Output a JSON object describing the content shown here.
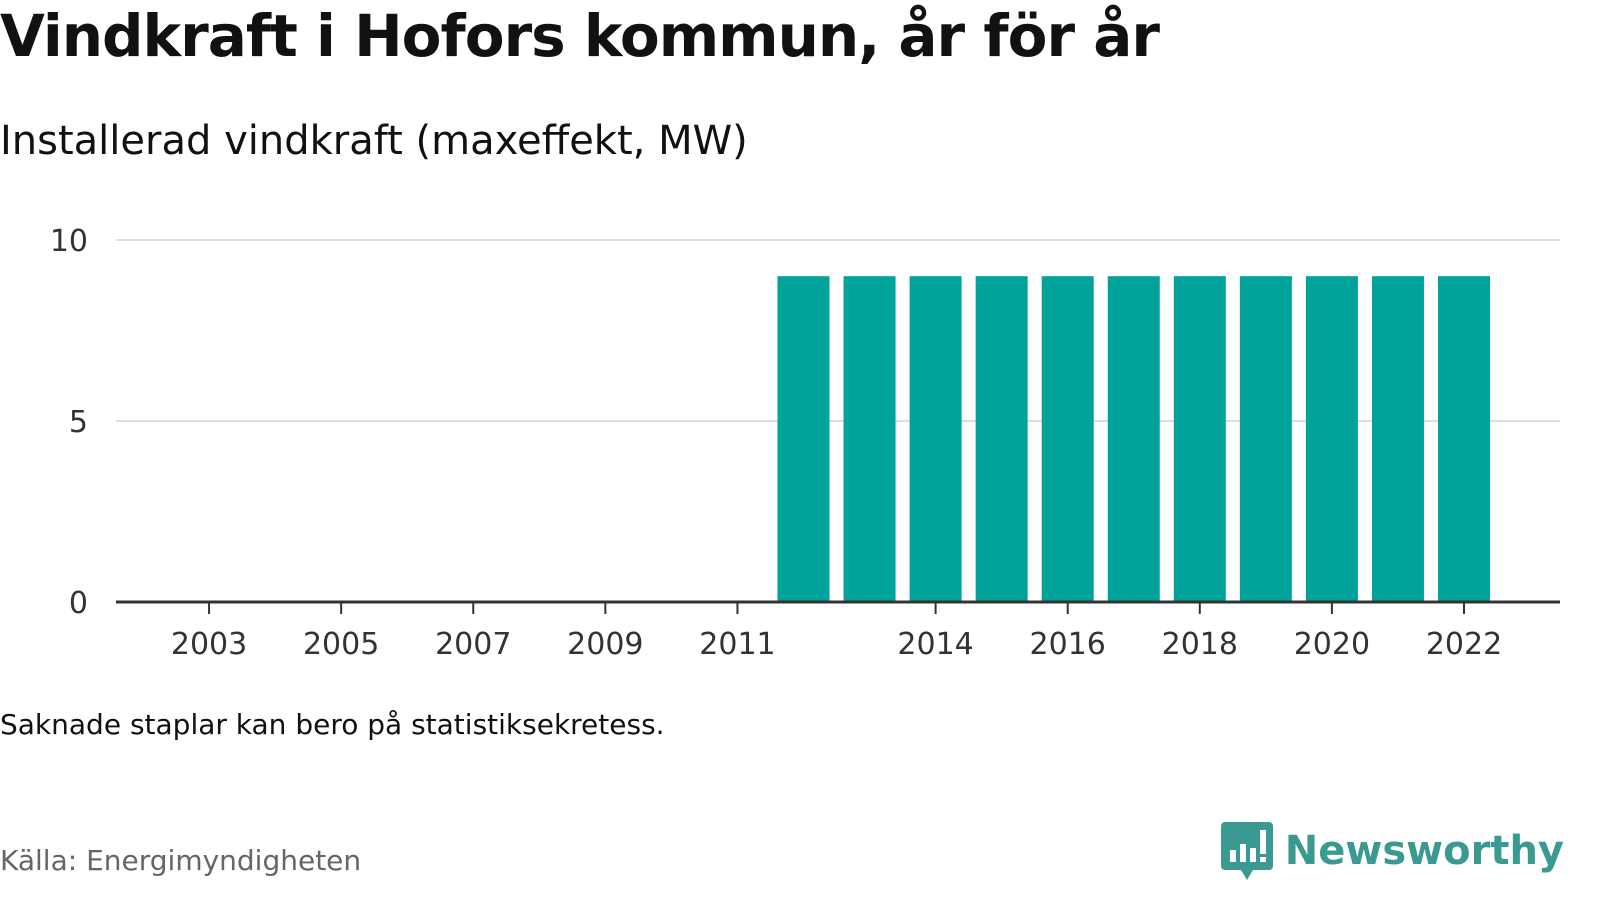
{
  "title": "Vindkraft i Hofors kommun, år för år",
  "subtitle": "Installerad vindkraft (maxeffekt, MW)",
  "note": "Saknade staplar kan bero på statistiksekretess.",
  "source": "Källa: Energimyndigheten",
  "brand": {
    "name": "Newsworthy",
    "icon": "newsworthy-logo-icon",
    "color": "#3a9a92"
  },
  "chart_data": {
    "type": "bar",
    "categories": [
      "2002",
      "2003",
      "2004",
      "2005",
      "2006",
      "2007",
      "2008",
      "2009",
      "2010",
      "2011",
      "2012",
      "2013",
      "2014",
      "2015",
      "2016",
      "2017",
      "2018",
      "2019",
      "2020",
      "2021",
      "2022"
    ],
    "values": [
      null,
      null,
      null,
      null,
      null,
      null,
      null,
      null,
      null,
      null,
      9,
      9,
      9,
      9,
      9,
      9,
      9,
      9,
      9,
      9,
      9
    ],
    "x_tick_labels": [
      "2003",
      "2005",
      "2007",
      "2009",
      "2011",
      "2014",
      "2016",
      "2018",
      "2020",
      "2022"
    ],
    "y_ticks": [
      0,
      5,
      10
    ],
    "ylim": [
      0,
      10
    ],
    "title": "Vindkraft i Hofors kommun, år för år",
    "subtitle": "Installerad vindkraft (maxeffekt, MW)",
    "xlabel": "",
    "ylabel": "",
    "grid": true,
    "legend": "none",
    "bar_color": "#00a39a",
    "grid_color": "#dddddd",
    "axis_color": "#333333"
  }
}
